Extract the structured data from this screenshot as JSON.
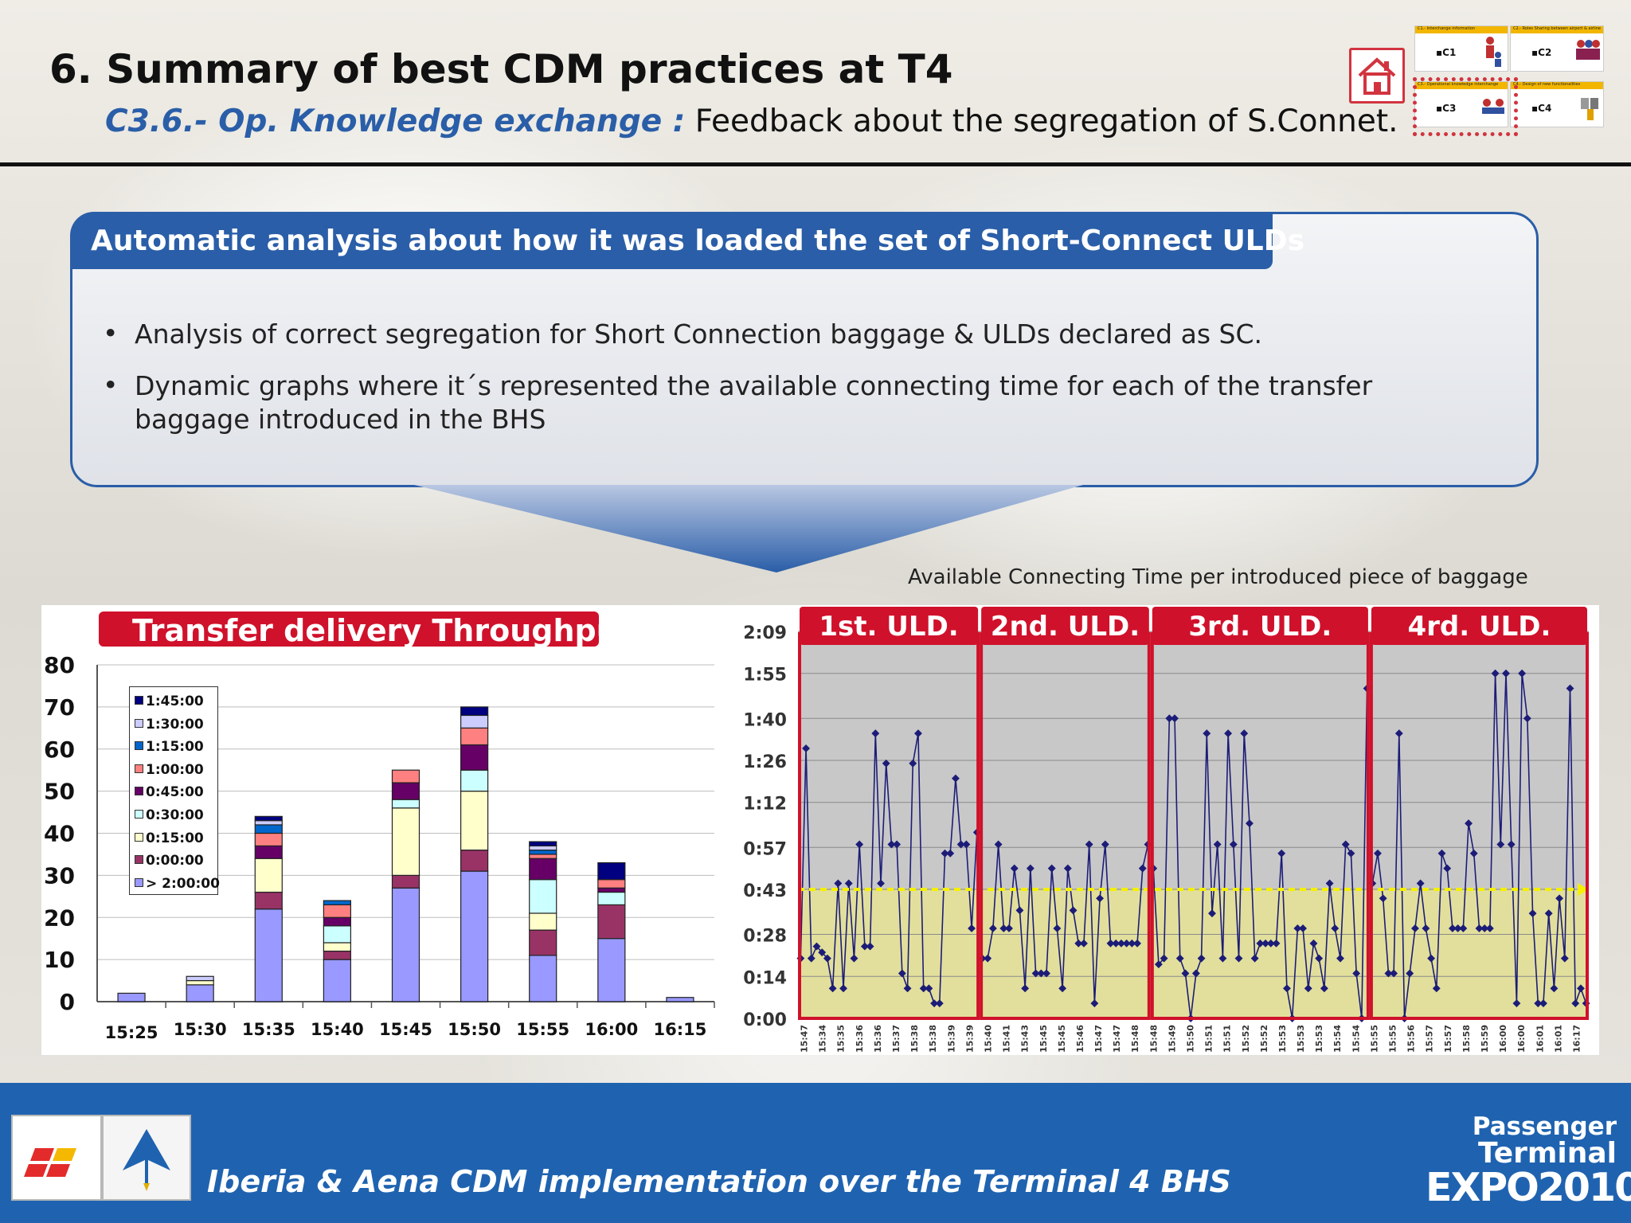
{
  "header": {
    "title": "6.   Summary of best CDM practices at T4",
    "subtitle_accent": "C3.6.- Op. Knowledge exchange :",
    "subtitle_rest": " Feedback about the segregation of S.Connet."
  },
  "nav_map": {
    "cells": [
      {
        "header": "C1.- Interchange information",
        "label": "▪C1"
      },
      {
        "header": "C2.- Roles Sharing between airport & airline",
        "label": "▪C2"
      },
      {
        "header": "C3.- Operational knowledge interchange",
        "label": "▪C3"
      },
      {
        "header": "C4.- Design of new functionalities",
        "label": "▪C4"
      }
    ]
  },
  "info": {
    "heading": "Automatic analysis about how it was loaded the set of Short-Connect ULDs",
    "bullets": [
      "Analysis of correct segregation for  Short Connection baggage & ULDs declared as SC.",
      " Dynamic graphs where it´s represented the available connecting time for each of the transfer baggage introduced in the BHS"
    ],
    "bullet_glyph": "•"
  },
  "colors": {
    "brand_blue": "#2a5ea8",
    "footer_blue": "#1f63b0",
    "accent_red": "#d0112b",
    "threshold_yellow": "#f4f000"
  },
  "chart_data": [
    {
      "type": "bar",
      "stacked": true,
      "title": "Transfer delivery Throughput",
      "categories": [
        "15:25",
        "15:30",
        "15:35",
        "15:40",
        "15:45",
        "15:50",
        "15:55",
        "16:00",
        "16:15"
      ],
      "ylim": [
        0,
        80
      ],
      "yticks": [
        "0",
        "10",
        "20",
        "30",
        "40",
        "50",
        "60",
        "70",
        "80"
      ],
      "grid": true,
      "legend_position": "top-left",
      "series": [
        {
          "name": "> 2:00:00",
          "color": "#9999ff",
          "values": [
            2,
            4,
            22,
            10,
            27,
            31,
            11,
            15,
            1
          ]
        },
        {
          "name": "0:00:00",
          "color": "#993366",
          "values": [
            0,
            0,
            4,
            2,
            3,
            5,
            6,
            8,
            0
          ]
        },
        {
          "name": "0:15:00",
          "color": "#ffffcc",
          "values": [
            0,
            1,
            8,
            2,
            16,
            14,
            4,
            0,
            0
          ]
        },
        {
          "name": "0:30:00",
          "color": "#ccffff",
          "values": [
            0,
            0,
            0,
            4,
            2,
            5,
            8,
            3,
            0
          ]
        },
        {
          "name": "0:45:00",
          "color": "#660066",
          "values": [
            0,
            0,
            3,
            2,
            4,
            6,
            5,
            1,
            0
          ]
        },
        {
          "name": "1:00:00",
          "color": "#ff8080",
          "values": [
            0,
            0,
            3,
            3,
            3,
            4,
            1,
            2,
            0
          ]
        },
        {
          "name": "1:15:00",
          "color": "#0066cc",
          "values": [
            0,
            0,
            2,
            1,
            0,
            0,
            1,
            0,
            0
          ]
        },
        {
          "name": "1:30:00",
          "color": "#ccccff",
          "values": [
            0,
            1,
            1,
            0,
            0,
            3,
            1,
            0,
            0
          ]
        },
        {
          "name": "1:45:00",
          "color": "#000080",
          "values": [
            0,
            0,
            1,
            0,
            0,
            2,
            1,
            4,
            0
          ]
        }
      ]
    },
    {
      "type": "line",
      "title": "Available Connecting Time per introduced piece of baggage",
      "y_unit": "minutes",
      "ylim": [
        0,
        129
      ],
      "yticks": [
        "0:00",
        "0:14",
        "0:28",
        "0:43",
        "0:57",
        "1:12",
        "1:26",
        "1:40",
        "1:55",
        "2:09"
      ],
      "threshold": 43,
      "threshold_label": "0:43",
      "grid": true,
      "segments": [
        {
          "label": "1st. ULD.",
          "values": [
            20,
            90,
            20,
            24,
            22,
            20,
            10,
            45,
            10,
            45,
            20,
            58,
            24,
            24,
            95,
            45,
            85,
            58,
            58,
            15,
            10,
            85,
            95,
            10,
            10,
            5,
            5,
            55,
            55,
            80,
            58,
            58,
            30,
            62
          ]
        },
        {
          "label": "2nd. ULD.",
          "values": [
            20,
            20,
            30,
            58,
            30,
            30,
            50,
            36,
            10,
            50,
            15,
            15,
            15,
            50,
            30,
            10,
            50,
            36,
            25,
            25,
            58,
            5,
            40,
            58,
            25,
            25,
            25,
            25,
            25,
            25,
            50,
            58
          ]
        },
        {
          "label": "3rd. ULD.",
          "values": [
            50,
            18,
            20,
            100,
            100,
            20,
            15,
            0,
            15,
            20,
            95,
            35,
            58,
            20,
            95,
            58,
            20,
            95,
            65,
            20,
            25,
            25,
            25,
            25,
            55,
            10,
            0,
            30,
            30,
            10,
            25,
            20,
            10,
            45,
            30,
            20,
            58,
            55,
            15,
            0,
            110
          ]
        },
        {
          "label": "4th. ULD.",
          "values": [
            45,
            55,
            40,
            15,
            15,
            95,
            0,
            15,
            30,
            45,
            30,
            20,
            10,
            55,
            50,
            30,
            30,
            30,
            65,
            55,
            30,
            30,
            30,
            115,
            58,
            115,
            58,
            5,
            115,
            100,
            35,
            5,
            5,
            35,
            10,
            40,
            20,
            110,
            5,
            10,
            5
          ]
        }
      ],
      "segment_titles": [
        "1st. ULD.",
        "2nd. ULD.",
        "3rd. ULD.",
        "4rd. ULD."
      ],
      "x_ticks": [
        "15:47",
        "15:34",
        "15:35",
        "15:36",
        "15:36",
        "15:37",
        "15:38",
        "15:38",
        "15:39",
        "15:39",
        "15:40",
        "15:41",
        "15:43",
        "15:45",
        "15:45",
        "15:46",
        "15:47",
        "15:47",
        "15:48",
        "15:48",
        "15:49",
        "15:50",
        "15:51",
        "15:51",
        "15:52",
        "15:52",
        "15:53",
        "15:53",
        "15:53",
        "15:54",
        "15:54",
        "15:55",
        "15:55",
        "15:56",
        "15:57",
        "15:57",
        "15:58",
        "15:59",
        "16:00",
        "16:00",
        "16:01",
        "16:01",
        "16:17"
      ]
    }
  ],
  "footer": {
    "text": "Iberia & Aena CDM implementation over the Terminal 4 BHS",
    "expo_l1": "Passenger",
    "expo_l2": "Terminal",
    "expo_l3": "EXPO2010"
  }
}
